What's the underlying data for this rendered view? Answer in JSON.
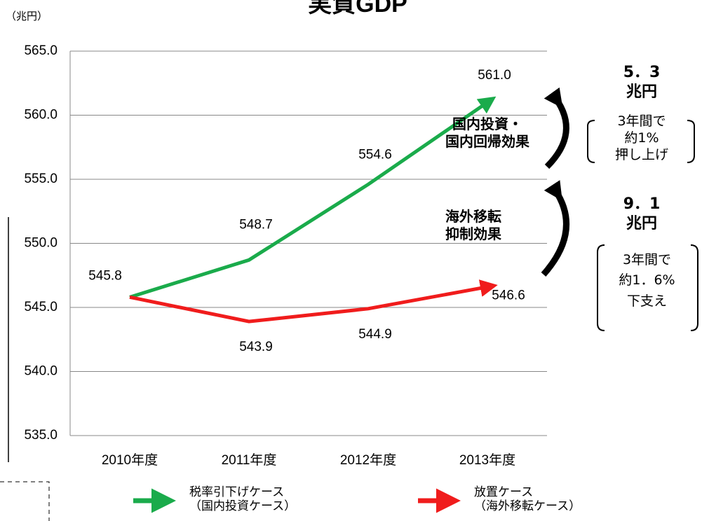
{
  "chart_data": {
    "type": "line",
    "title": "実質GDP",
    "unit_label": "（兆円）",
    "categories": [
      "2010年度",
      "2011年度",
      "2012年度",
      "2013年度"
    ],
    "series": [
      {
        "name": "税率引下げケース\n（国内投資ケース）",
        "color": "#1aab4b",
        "values": [
          545.8,
          548.7,
          554.6,
          561.0
        ],
        "value_labels": [
          "545.8",
          "548.7",
          "554.6",
          "561.0"
        ]
      },
      {
        "name": "放置ケース\n（海外移転ケース）",
        "color": "#f01c1c",
        "values": [
          545.8,
          543.9,
          544.9,
          546.6
        ],
        "value_labels": [
          null,
          "543.9",
          "544.9",
          "546.6"
        ]
      }
    ],
    "ylim": [
      535,
      565
    ],
    "yticks": [
      {
        "value": 535,
        "label": "535.0"
      },
      {
        "value": 540,
        "label": "540.0"
      },
      {
        "value": 545,
        "label": "545.0"
      },
      {
        "value": 550,
        "label": "550.0"
      },
      {
        "value": 555,
        "label": "555.0"
      },
      {
        "value": 560,
        "label": "560.0"
      },
      {
        "value": 565,
        "label": "565.0"
      }
    ],
    "grid": true,
    "annotations": {
      "effect_upper": "国内投資・\n国内回帰効果",
      "effect_lower": "海外移転\n抑制効果",
      "amount_upper": "5．3\n兆円",
      "box_upper": "3年間で\n約1%\n押し上げ",
      "amount_lower": "9．1\n兆円",
      "box_lower": "3年間で\n約1．6%\n下支え"
    }
  }
}
